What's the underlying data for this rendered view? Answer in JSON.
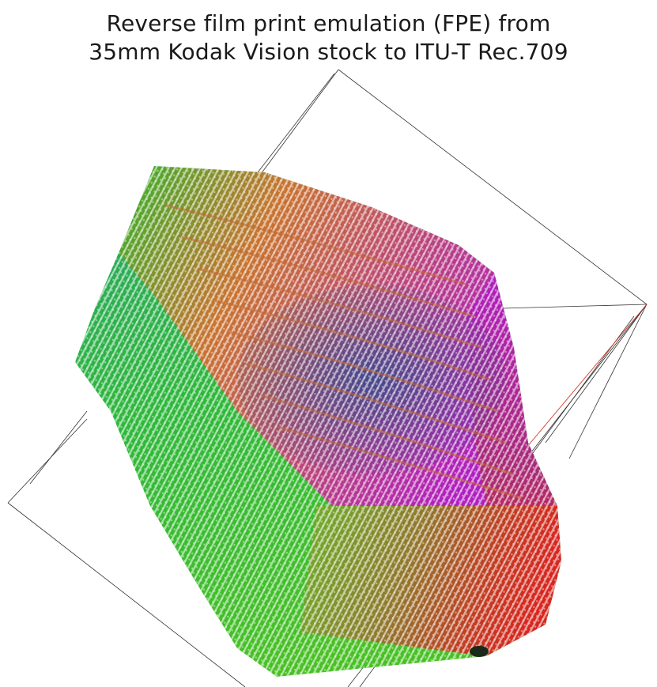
{
  "title": {
    "line1": "Reverse film print emulation (FPE) from",
    "line2": "35mm Kodak Vision stock to ITU-T Rec.709"
  },
  "colors": {
    "box_edge": "#333333",
    "red_axis": "#d63a2a",
    "green_corner": "#2fb52a",
    "magenta_corner": "#b01ec0",
    "red_corner": "#d8261f",
    "dark_corner": "#1a2a1a",
    "blue_core": "#3a4a8c"
  }
}
